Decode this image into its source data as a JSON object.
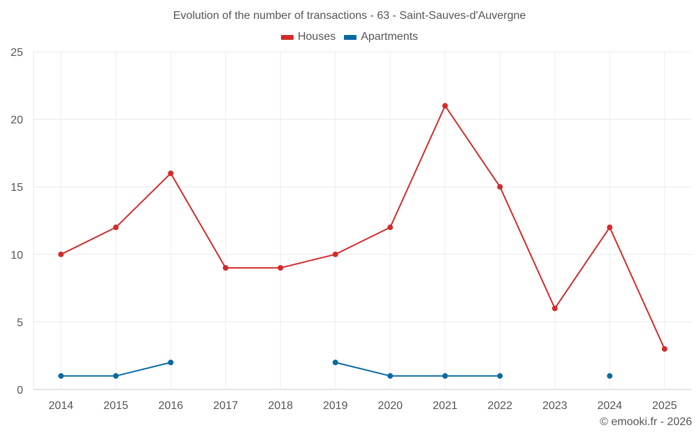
{
  "chart_data": {
    "type": "line",
    "title": "Evolution of the number of transactions - 63 - Saint-Sauves-d'Auvergne",
    "xlabel": "",
    "ylabel": "",
    "categories": [
      "2014",
      "2015",
      "2016",
      "2017",
      "2018",
      "2019",
      "2020",
      "2021",
      "2022",
      "2023",
      "2024",
      "2025"
    ],
    "series": [
      {
        "name": "Houses",
        "color": "#d32b2b",
        "values": [
          10,
          12,
          16,
          9,
          9,
          10,
          12,
          21,
          15,
          6,
          12,
          3
        ]
      },
      {
        "name": "Apartments",
        "color": "#0b6aa0",
        "values": [
          1,
          1,
          2,
          null,
          null,
          2,
          1,
          1,
          1,
          null,
          1,
          null
        ]
      }
    ],
    "ylim": [
      0,
      25
    ],
    "yticks": [
      0,
      5,
      10,
      15,
      20,
      25
    ],
    "grid": true,
    "legend": "top-center"
  },
  "legend": {
    "items": [
      {
        "label": "Houses",
        "color": "#d32b2b"
      },
      {
        "label": "Apartments",
        "color": "#0b6aa0"
      }
    ]
  },
  "credit": "© emooki.fr - 2026"
}
